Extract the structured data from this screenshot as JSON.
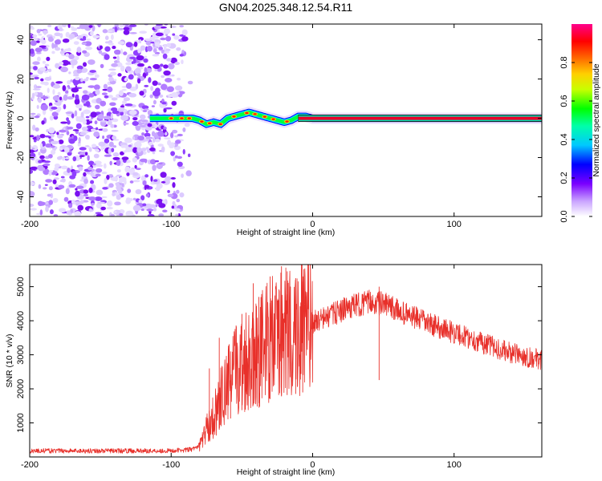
{
  "title": "GN04.2025.348.12.54.R11",
  "colors": {
    "snr_line": "#e8302a",
    "track": "#e8002a",
    "track_edge": "#1a1a1a"
  },
  "chart_data": [
    {
      "type": "heatmap",
      "name": "spectrogram",
      "xlabel": "Height of straight line (km)",
      "ylabel": "Frequency (Hz)",
      "xlim": [
        -200,
        162
      ],
      "ylim": [
        -50,
        48
      ],
      "xticks": [
        -200,
        -100,
        0,
        100
      ],
      "yticks": [
        -40,
        -20,
        0,
        20,
        40
      ],
      "track": {
        "x": [
          -115,
          -105,
          -95,
          -85,
          -80,
          -75,
          -70,
          -65,
          -60,
          -55,
          -50,
          -45,
          -40,
          -35,
          -30,
          -25,
          -20,
          -15,
          -10,
          -5,
          0,
          50,
          100,
          162
        ],
        "y": [
          0,
          0,
          0,
          0,
          -1,
          -3,
          -2,
          -3,
          0,
          1,
          2,
          3,
          2,
          1,
          0,
          -1,
          -2,
          -1,
          1,
          1,
          0,
          0,
          0,
          0
        ]
      },
      "noise_region": [
        -200,
        -85
      ]
    },
    {
      "type": "colorbar",
      "name": "colorbar",
      "label": "Normalized spectral amplitude",
      "range": [
        0,
        1
      ],
      "ticks": [
        0.0,
        0.2,
        0.4,
        0.6,
        0.8
      ],
      "tick_labels": [
        "0.0",
        "0.2",
        "0.4",
        "0.6",
        "0.8"
      ]
    },
    {
      "type": "line",
      "name": "snr",
      "xlabel": "Height of straight line (km)",
      "ylabel": "SNR (10 * v/v)",
      "xlim": [
        -200,
        162
      ],
      "ylim": [
        0,
        5650
      ],
      "xticks": [
        -200,
        -100,
        0,
        100
      ],
      "yticks": [
        1000,
        2000,
        3000,
        4000,
        5000
      ],
      "envelope": {
        "x": [
          -200,
          -150,
          -100,
          -85,
          -80,
          -75,
          -70,
          -65,
          -60,
          -55,
          -50,
          -45,
          -40,
          -35,
          -30,
          -25,
          -20,
          -15,
          -10,
          -5,
          0,
          10,
          20,
          30,
          40,
          50,
          60,
          80,
          100,
          120,
          140,
          162
        ],
        "y": [
          180,
          180,
          180,
          220,
          350,
          800,
          1200,
          1700,
          2100,
          2500,
          2750,
          2950,
          3100,
          3250,
          3400,
          3500,
          3600,
          3700,
          3700,
          3850,
          3950,
          4100,
          4300,
          4450,
          4550,
          4500,
          4300,
          3950,
          3650,
          3350,
          3050,
          2850
        ]
      },
      "spikes": [
        {
          "x": -73,
          "y": 2600
        },
        {
          "x": -66,
          "y": 3500
        },
        {
          "x": -58,
          "y": 3100
        },
        {
          "x": -50,
          "y": 4200
        },
        {
          "x": -42,
          "y": 5100
        },
        {
          "x": -38,
          "y": 4700
        },
        {
          "x": -30,
          "y": 5300
        },
        {
          "x": -22,
          "y": 5600
        },
        {
          "x": -18,
          "y": 5450
        },
        {
          "x": -12,
          "y": 5250
        },
        {
          "x": -7,
          "y": 5150
        },
        {
          "x": 47,
          "y": 5000
        }
      ]
    }
  ]
}
